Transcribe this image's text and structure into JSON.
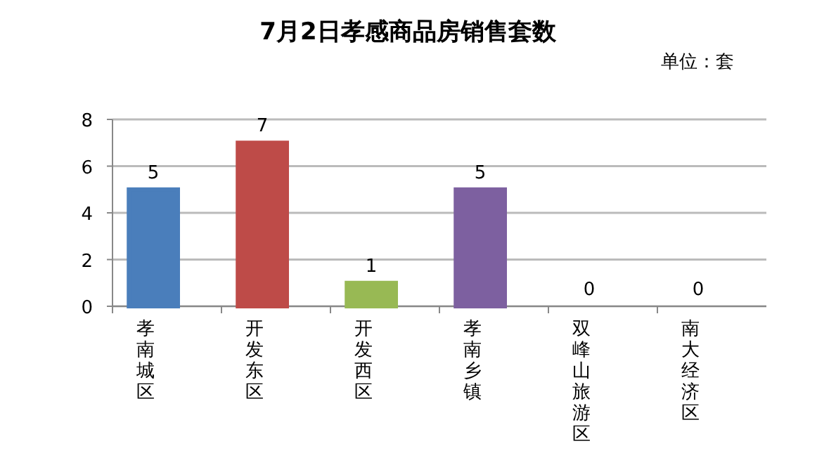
{
  "chart_data": {
    "type": "bar",
    "title": "7月2日孝感商品房销售套数",
    "annotations": [
      "单位：套"
    ],
    "categories": [
      "孝南城区",
      "开发东区",
      "开发西区",
      "孝南乡镇",
      "双峰山旅游区",
      "南大经济区"
    ],
    "values": [
      5,
      7,
      1,
      5,
      0,
      0
    ],
    "colors": [
      "#4a7ebb",
      "#be4b48",
      "#98b954",
      "#7d60a0",
      "#31859c",
      "#d5823a"
    ],
    "ylim": [
      0,
      8
    ],
    "yticks": [
      0,
      2,
      4,
      6,
      8
    ],
    "grid": "y",
    "data_labels": true
  }
}
